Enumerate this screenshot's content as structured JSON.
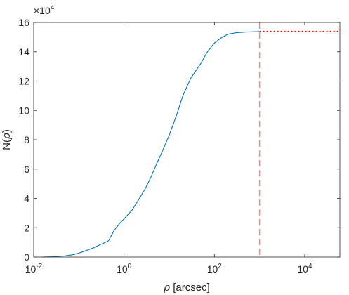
{
  "chart_data": {
    "type": "line",
    "title": "",
    "xlabel_symbol": "ρ",
    "xlabel_unit": "[arcsec]",
    "ylabel_prefix": "N(",
    "ylabel_symbol": "ρ",
    "ylabel_suffix": ")",
    "x_scale": "log",
    "xlim": [
      0.01,
      60000
    ],
    "ylim": [
      0,
      160000
    ],
    "y_multiplier_base": "×10",
    "y_multiplier_exp": "4",
    "x_ticks": [
      {
        "value": 0.01,
        "base": "10",
        "exp": "-2"
      },
      {
        "value": 1,
        "base": "10",
        "exp": "0"
      },
      {
        "value": 100,
        "base": "10",
        "exp": "2"
      },
      {
        "value": 10000,
        "base": "10",
        "exp": "4"
      }
    ],
    "y_ticks": [
      {
        "value": 0,
        "label": "0"
      },
      {
        "value": 20000,
        "label": "2"
      },
      {
        "value": 40000,
        "label": "4"
      },
      {
        "value": 60000,
        "label": "6"
      },
      {
        "value": 80000,
        "label": "8"
      },
      {
        "value": 100000,
        "label": "10"
      },
      {
        "value": 120000,
        "label": "12"
      },
      {
        "value": 140000,
        "label": "14"
      },
      {
        "value": 160000,
        "label": "16"
      }
    ],
    "grid": false,
    "legend": "none",
    "series": [
      {
        "color": "#0072bd",
        "style": "solid",
        "x": [
          0.015,
          0.02,
          0.03,
          0.05,
          0.08,
          0.12,
          0.2,
          0.3,
          0.45,
          0.6,
          0.8,
          1.0,
          1.5,
          2,
          3,
          4,
          5,
          7,
          10,
          15,
          20,
          30,
          50,
          70,
          100,
          150,
          200,
          300,
          500,
          1000
        ],
        "y": [
          0,
          100,
          300,
          800,
          1800,
          3500,
          6000,
          8500,
          11000,
          18000,
          23000,
          26000,
          32000,
          38000,
          47000,
          55000,
          62000,
          72000,
          83000,
          98000,
          110000,
          122000,
          132000,
          140000,
          146000,
          150000,
          152000,
          153000,
          153500,
          153800
        ]
      },
      {
        "color": "#ff0000",
        "style": "dotted",
        "x": [
          1000,
          1500,
          2500,
          4000,
          6000,
          10000,
          20000,
          40000,
          60000
        ],
        "y": [
          153800,
          153800,
          153800,
          153800,
          153800,
          153800,
          153800,
          153800,
          153800
        ]
      }
    ],
    "vlines": [
      {
        "x": 1000,
        "color": "#e8908a",
        "style": "dashed"
      }
    ]
  }
}
